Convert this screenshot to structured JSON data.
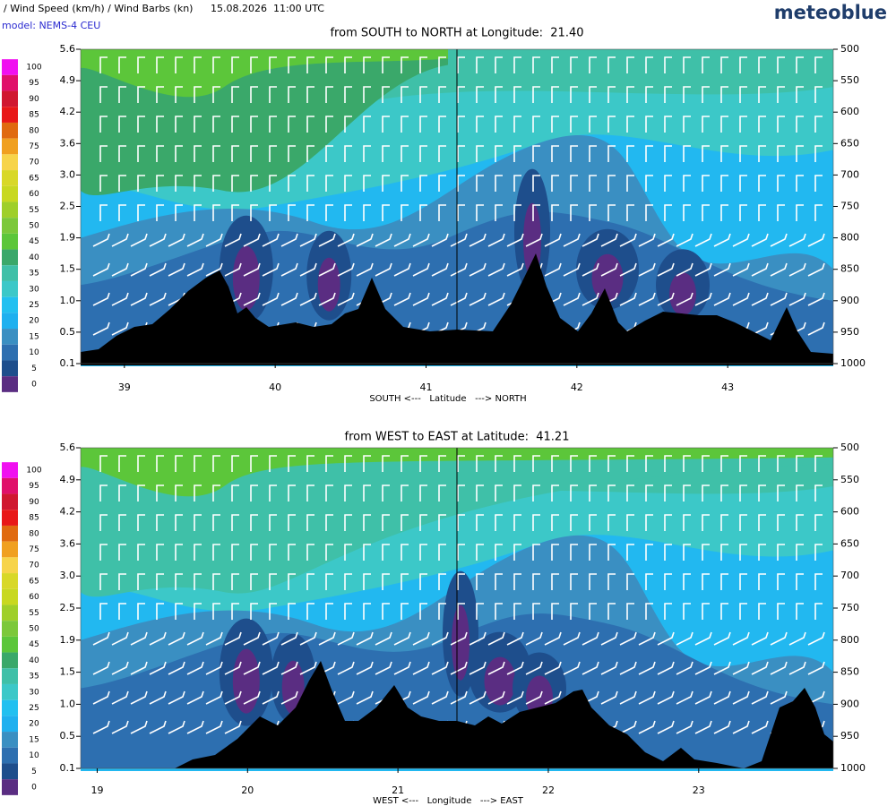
{
  "header": {
    "variables": "/ Wind Speed (km/h) / Wind Barbs (kn)",
    "time": "15.08.2026  11:00 UTC",
    "model": "model: NEMS-4 CEU",
    "brand": "meteoblue"
  },
  "chart_data": [
    {
      "type": "contour",
      "title": "from SOUTH to NORTH at Longitude:  21.40",
      "xlabel": "SOUTH <---   Latitude   ---> NORTH",
      "xlim": [
        38.71,
        43.7
      ],
      "xticks": [
        39,
        40,
        41,
        42,
        43
      ],
      "y2lim": [
        500,
        1000
      ],
      "y2ticks": [
        500,
        550,
        600,
        650,
        700,
        750,
        800,
        850,
        900,
        950,
        1000
      ],
      "yticks": [
        {
          "value": 5.6,
          "label": "5.6"
        },
        {
          "value": 4.9,
          "label": "4.9"
        },
        {
          "value": 4.2,
          "label": "4.2"
        },
        {
          "value": 3.6,
          "label": "3.6"
        },
        {
          "value": 3.0,
          "label": "3.0"
        },
        {
          "value": 2.5,
          "label": "2.5"
        },
        {
          "value": 1.9,
          "label": "1.9"
        },
        {
          "value": 1.5,
          "label": "1.5"
        },
        {
          "value": 1.0,
          "label": "1.0"
        },
        {
          "value": 0.5,
          "label": "0.5"
        },
        {
          "value": 0.1,
          "label": "0.1"
        }
      ],
      "colorbar": {
        "values": [
          100,
          95,
          90,
          85,
          80,
          75,
          70,
          65,
          60,
          55,
          50,
          45,
          40,
          35,
          30,
          25,
          20,
          15,
          10,
          5,
          0
        ],
        "colors": [
          "#f010f0",
          "#e0106a",
          "#d01830",
          "#e81818",
          "#e06a10",
          "#f0a020",
          "#f7d44a",
          "#d8d828",
          "#c8d820",
          "#9fcf2a",
          "#7cc83a",
          "#5cc63a",
          "#3aa86a",
          "#3fc0a8",
          "#3cc8c8",
          "#22c0f0",
          "#1fb0ef",
          "#3a8fc2",
          "#2d6fb0",
          "#1e4e8c",
          "#5a2d82"
        ]
      }
    },
    {
      "type": "contour",
      "title": "from WEST to EAST at Latitude:  41.21",
      "xlabel": "WEST <---   Longitude   ---> EAST",
      "xlim": [
        18.89,
        23.895
      ],
      "xticks": [
        19,
        20,
        21,
        22,
        23
      ],
      "y2lim": [
        500,
        1000
      ],
      "y2ticks": [
        500,
        550,
        600,
        650,
        700,
        750,
        800,
        850,
        900,
        950,
        1000
      ],
      "yticks": [
        {
          "value": 5.6,
          "label": "5.6"
        },
        {
          "value": 4.9,
          "label": "4.9"
        },
        {
          "value": 4.2,
          "label": "4.2"
        },
        {
          "value": 3.6,
          "label": "3.6"
        },
        {
          "value": 3.0,
          "label": "3.0"
        },
        {
          "value": 2.5,
          "label": "2.5"
        },
        {
          "value": 1.9,
          "label": "1.9"
        },
        {
          "value": 1.5,
          "label": "1.5"
        },
        {
          "value": 1.0,
          "label": "1.0"
        },
        {
          "value": 0.5,
          "label": "0.5"
        },
        {
          "value": 0.1,
          "label": "0.1"
        }
      ],
      "colorbar": {
        "values": [
          100,
          95,
          90,
          85,
          80,
          75,
          70,
          65,
          60,
          55,
          50,
          45,
          40,
          35,
          30,
          25,
          20,
          15,
          10,
          5,
          0
        ],
        "colors": [
          "#f010f0",
          "#e0106a",
          "#d01830",
          "#e81818",
          "#e06a10",
          "#f0a020",
          "#f7d44a",
          "#d8d828",
          "#c8d820",
          "#9fcf2a",
          "#7cc83a",
          "#5cc63a",
          "#3aa86a",
          "#3fc0a8",
          "#3cc8c8",
          "#22c0f0",
          "#1fb0ef",
          "#3a8fc2",
          "#2d6fb0",
          "#1e4e8c",
          "#5a2d82"
        ]
      }
    }
  ]
}
